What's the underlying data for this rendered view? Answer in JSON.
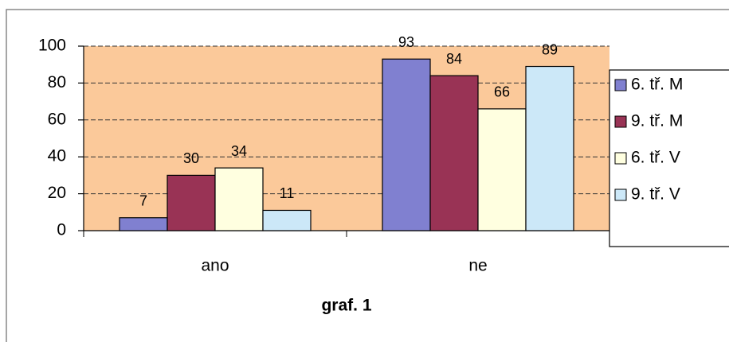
{
  "chart_data": {
    "type": "bar",
    "x_label": "graf. 1",
    "categories": [
      "ano",
      "ne"
    ],
    "series": [
      {
        "name": "6. tř. M",
        "color": "#8080d0",
        "values": [
          7,
          93
        ]
      },
      {
        "name": "9. tř. M",
        "color": "#993355",
        "values": [
          30,
          84
        ]
      },
      {
        "name": "6. tř. V",
        "color": "#ffffe0",
        "values": [
          34,
          66
        ]
      },
      {
        "name": "9. tř. V",
        "color": "#cce8f8",
        "values": [
          11,
          89
        ]
      }
    ],
    "ylim": [
      0,
      100
    ],
    "yticks": [
      0,
      20,
      40,
      60,
      80,
      100
    ],
    "grid": true,
    "legend": "right",
    "background": "#fbc99a"
  }
}
